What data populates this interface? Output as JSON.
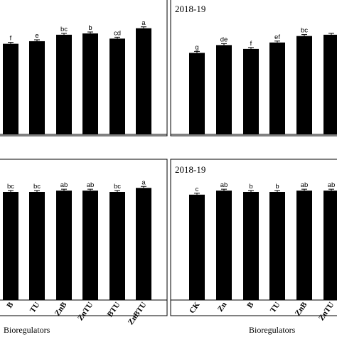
{
  "chart_data": [
    {
      "type": "bar",
      "panel": "top-left",
      "title": "",
      "categories": [
        "B",
        "TU",
        "ZnB",
        "ZnTU",
        "BTU",
        "ZnBTU"
      ],
      "series": [
        {
          "values": [
            0.7,
            0.72,
            0.77,
            0.78,
            0.74,
            0.82
          ]
        }
      ],
      "significance": [
        "f",
        "e",
        "bc",
        "b",
        "cd",
        "a"
      ],
      "ylim": [
        0,
        1
      ],
      "show_tick_labels": false,
      "xlabel": ""
    },
    {
      "type": "bar",
      "panel": "top-right",
      "title": "2018-19",
      "categories": [
        "CK",
        "Zn",
        "B",
        "TU",
        "ZnB",
        "ZnTU"
      ],
      "series": [
        {
          "values": [
            0.63,
            0.69,
            0.66,
            0.71,
            0.76,
            0.77
          ]
        }
      ],
      "significance": [
        "g",
        "de",
        "f",
        "ef",
        "bc",
        ""
      ],
      "ylim": [
        0,
        1
      ],
      "show_tick_labels": false,
      "xlabel": ""
    },
    {
      "type": "bar",
      "panel": "bottom-left",
      "title": "",
      "categories": [
        "B",
        "TU",
        "ZnB",
        "ZnTU",
        "BTU",
        "ZnBTU"
      ],
      "series": [
        {
          "values": [
            0.8,
            0.8,
            0.81,
            0.81,
            0.8,
            0.83
          ]
        }
      ],
      "significance": [
        "bc",
        "bc",
        "ab",
        "ab",
        "bc",
        "a"
      ],
      "ylim": [
        0,
        1
      ],
      "show_tick_labels": true,
      "xlabel": "Bioregulators"
    },
    {
      "type": "bar",
      "panel": "bottom-right",
      "title": "2018-19",
      "categories": [
        "CK",
        "Zn",
        "B",
        "TU",
        "ZnB",
        "ZnTU"
      ],
      "series": [
        {
          "values": [
            0.78,
            0.81,
            0.8,
            0.8,
            0.81,
            0.81
          ]
        }
      ],
      "significance": [
        "c",
        "ab",
        "b",
        "b",
        "ab",
        "ab"
      ],
      "ylim": [
        0,
        1
      ],
      "show_tick_labels": true,
      "xlabel": "Bioregulators"
    }
  ]
}
